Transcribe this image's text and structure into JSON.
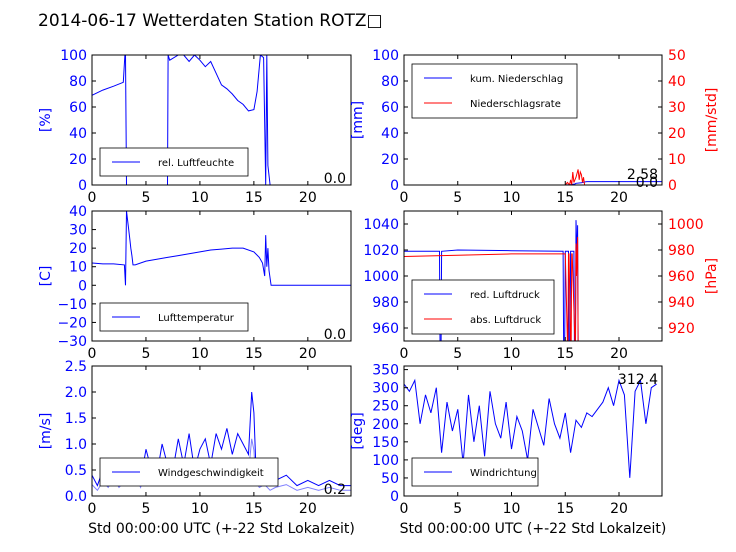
{
  "title": "2014-06-17 Wetterdaten Station ROTZ□",
  "colors": {
    "primary": "#0000ff",
    "secondary": "#ff0000",
    "light": "#8080ff"
  },
  "chart_data": [
    {
      "id": "humidity",
      "type": "line",
      "ylabel": "[%]",
      "xlim": [
        0,
        24
      ],
      "ylim": [
        0,
        100
      ],
      "xticks": [
        "0",
        "5",
        "10",
        "15",
        "20"
      ],
      "yticks": [
        "0",
        "20",
        "40",
        "60",
        "80",
        "100"
      ],
      "current_value": "0.0",
      "legend": "top-left",
      "series": [
        {
          "name": "rel. Luftfeuchte",
          "x": [
            0,
            1,
            2,
            2.9,
            3.05,
            3.1,
            3.2,
            3.3,
            5,
            7,
            7.05,
            7.2,
            8,
            8.5,
            9,
            9.5,
            10,
            10.5,
            11,
            11.5,
            12,
            12.5,
            13,
            13.5,
            14,
            14.5,
            15,
            15.3,
            15.6,
            15.9,
            16.1,
            16.2,
            16.3,
            16.5,
            17,
            24
          ],
          "y": [
            69,
            73,
            76,
            79,
            100,
            100,
            0,
            0,
            0,
            0,
            100,
            96,
            100,
            100,
            95,
            100,
            96,
            91,
            95,
            86,
            77,
            74,
            70,
            65,
            62,
            57,
            58,
            72,
            100,
            98,
            0,
            100,
            15,
            0,
            0,
            0
          ]
        }
      ]
    },
    {
      "id": "precipitation",
      "type": "line",
      "ylabel": "[mm]",
      "y2label": "[mm/std]",
      "xlim": [
        0,
        24
      ],
      "ylim": [
        0,
        100
      ],
      "y2lim": [
        0,
        50
      ],
      "xticks": [
        "0",
        "5",
        "10",
        "15",
        "20"
      ],
      "yticks": [
        "0",
        "20",
        "40",
        "60",
        "80",
        "100"
      ],
      "y2ticks": [
        "0",
        "10",
        "20",
        "30",
        "40",
        "50"
      ],
      "current_value": "2.58",
      "current_value2": "0.0",
      "legend": "top-left",
      "series": [
        {
          "name": "kum. Niederschlag",
          "axis": "left",
          "x": [
            0,
            15,
            15.5,
            15.9,
            16.0,
            16.5,
            16.8,
            17,
            24
          ],
          "y": [
            0,
            0,
            0.3,
            0.8,
            1.3,
            1.8,
            2.3,
            2.58,
            2.58
          ]
        },
        {
          "name": "Niederschlagsrate",
          "axis": "right",
          "x": [
            0,
            15,
            15.2,
            15.4,
            15.5,
            15.6,
            15.7,
            15.8,
            16.0,
            16.2,
            16.3,
            16.4,
            16.5,
            16.6,
            16.7,
            16.8,
            17,
            24
          ],
          "y": [
            0,
            0,
            1,
            0,
            2,
            0,
            5,
            1,
            3,
            6,
            2,
            5,
            4,
            1,
            3,
            0,
            0,
            0
          ]
        }
      ]
    },
    {
      "id": "temperature",
      "type": "line",
      "ylabel": "[C]",
      "xlim": [
        0,
        24
      ],
      "ylim": [
        -30,
        40
      ],
      "xticks": [
        "0",
        "5",
        "10",
        "15",
        "20"
      ],
      "yticks": [
        "−30",
        "−20",
        "−10",
        "0",
        "10",
        "20",
        "30",
        "40"
      ],
      "current_value": "0.0",
      "legend": "bottom-left",
      "series": [
        {
          "name": "Lufttemperatur",
          "x": [
            0,
            1,
            2,
            3,
            3.1,
            3.2,
            3.3,
            3.4,
            3.5,
            3.6,
            3.7,
            3.8,
            4,
            5,
            6,
            7,
            8,
            9,
            10,
            11,
            12,
            13,
            14,
            15,
            15.5,
            15.8,
            16,
            16.1,
            16.2,
            16.3,
            16.4,
            16.6,
            17,
            18,
            20,
            24
          ],
          "y": [
            12,
            11.5,
            11.5,
            11,
            0,
            40,
            35,
            30,
            25,
            20,
            16,
            11,
            11,
            13,
            14,
            15,
            16,
            17,
            18,
            19,
            19.5,
            20,
            20,
            18,
            15,
            12,
            5,
            27,
            10,
            20,
            8,
            0,
            0,
            0,
            0,
            0
          ]
        }
      ]
    },
    {
      "id": "pressure",
      "type": "line",
      "y2label": "[hPa]",
      "xlim": [
        0,
        24
      ],
      "ylim": [
        950,
        1050
      ],
      "y2lim": [
        910,
        1010
      ],
      "xticks": [
        "0",
        "5",
        "10",
        "15",
        "20"
      ],
      "yticks": [
        "960",
        "980",
        "1000",
        "1020",
        "1040"
      ],
      "y2ticks": [
        "920",
        "940",
        "960",
        "980",
        "1000"
      ],
      "legend": "bottom-left",
      "series": [
        {
          "name": "red. Luftdruck",
          "axis": "left",
          "x": [
            0,
            3.3,
            3.35,
            3.45,
            3.5,
            5,
            10,
            14.8,
            14.85,
            14.95,
            15,
            15.3,
            15.35,
            15.45,
            15.5,
            15.8,
            15.85,
            15.95,
            16,
            16.05,
            16.1,
            16.15,
            16.2,
            16.25,
            24
          ],
          "y": [
            1019,
            1019,
            950,
            950,
            1019,
            1020,
            1019.5,
            1019,
            950,
            950,
            1019,
            1019,
            950,
            950,
            1019,
            1019,
            950,
            950,
            1043,
            1030,
            1010,
            1039,
            950,
            950,
            950
          ]
        },
        {
          "name": "abs. Luftdruck",
          "axis": "right",
          "x": [
            0,
            5,
            10,
            15,
            15.2,
            15.25,
            15.3,
            15.35,
            15.5,
            15.55,
            15.6,
            15.65,
            15.9,
            15.95,
            16.0,
            16.05,
            16.1,
            16.15,
            16.2,
            16.25,
            16.3,
            24
          ],
          "y": [
            975,
            976,
            977,
            977,
            910,
            910,
            977,
            977,
            910,
            910,
            977,
            977,
            910,
            910,
            985,
            960,
            975,
            990,
            910,
            910,
            910,
            910
          ]
        }
      ]
    },
    {
      "id": "wind_speed",
      "type": "line",
      "ylabel": "[m/s]",
      "xlabel": "Std 00:00:00 UTC (+-22 Std Lokalzeit)",
      "xlim": [
        0,
        24
      ],
      "ylim": [
        0,
        2.5
      ],
      "xticks": [
        "0",
        "5",
        "10",
        "15",
        "20"
      ],
      "yticks": [
        "0.0",
        "0.5",
        "1.0",
        "1.5",
        "2.0",
        "2.5"
      ],
      "current_value": "0.2",
      "legend": "bottom-left",
      "series": [
        {
          "name": "Windgeschwindigkeit",
          "x": [
            0,
            0.5,
            1,
            1.5,
            2,
            2.5,
            3,
            3.5,
            4,
            4.5,
            5,
            5.5,
            6,
            6.5,
            7,
            7.5,
            8,
            8.5,
            9,
            9.5,
            10,
            10.5,
            11,
            11.5,
            12,
            12.5,
            13,
            13.5,
            14,
            14.5,
            14.8,
            15,
            15.2,
            15.5,
            16,
            16.5,
            17,
            18,
            19,
            20,
            21,
            22,
            23,
            24
          ],
          "y": [
            0.4,
            0.2,
            0.5,
            0.3,
            0.6,
            0.3,
            0.5,
            0.4,
            0.7,
            0.3,
            0.9,
            0.5,
            0.4,
            1.0,
            0.6,
            0.5,
            1.1,
            0.6,
            1.2,
            0.5,
            0.9,
            1.1,
            0.6,
            1.2,
            0.9,
            1.3,
            0.8,
            1.2,
            1.0,
            0.8,
            2.0,
            1.6,
            0.5,
            0.3,
            0.4,
            0.2,
            0.3,
            0.4,
            0.2,
            0.3,
            0.2,
            0.3,
            0.2,
            0.2
          ]
        }
      ]
    },
    {
      "id": "wind_direction",
      "type": "line",
      "ylabel": "[deg]",
      "xlabel": "Std 00:00:00 UTC (+-22 Std Lokalzeit)",
      "xlim": [
        0,
        24
      ],
      "ylim": [
        0,
        360
      ],
      "xticks": [
        "0",
        "5",
        "10",
        "15",
        "20"
      ],
      "yticks": [
        "0",
        "50",
        "100",
        "150",
        "200",
        "250",
        "300",
        "350"
      ],
      "current_value": "312.4",
      "legend": "bottom-left",
      "series": [
        {
          "name": "Windrichtung",
          "x": [
            0,
            0.5,
            1,
            1.5,
            2,
            2.5,
            3,
            3.5,
            4,
            4.5,
            5,
            5.5,
            6,
            6.5,
            7,
            7.5,
            8,
            8.5,
            9,
            9.5,
            10,
            10.5,
            11,
            11.5,
            12,
            12.5,
            13,
            13.5,
            14,
            14.5,
            15,
            15.5,
            16,
            16.5,
            17,
            17.5,
            18,
            18.5,
            19,
            19.5,
            20,
            20.5,
            21,
            21.5,
            22,
            22.5,
            23,
            23.5
          ],
          "y": [
            310,
            290,
            320,
            200,
            280,
            230,
            300,
            120,
            260,
            180,
            240,
            90,
            280,
            150,
            250,
            110,
            290,
            200,
            160,
            260,
            130,
            220,
            180,
            100,
            240,
            190,
            140,
            270,
            200,
            160,
            230,
            120,
            210,
            190,
            230,
            220,
            240,
            260,
            300,
            250,
            320,
            280,
            50,
            290,
            320,
            200,
            300,
            310
          ]
        }
      ]
    }
  ]
}
